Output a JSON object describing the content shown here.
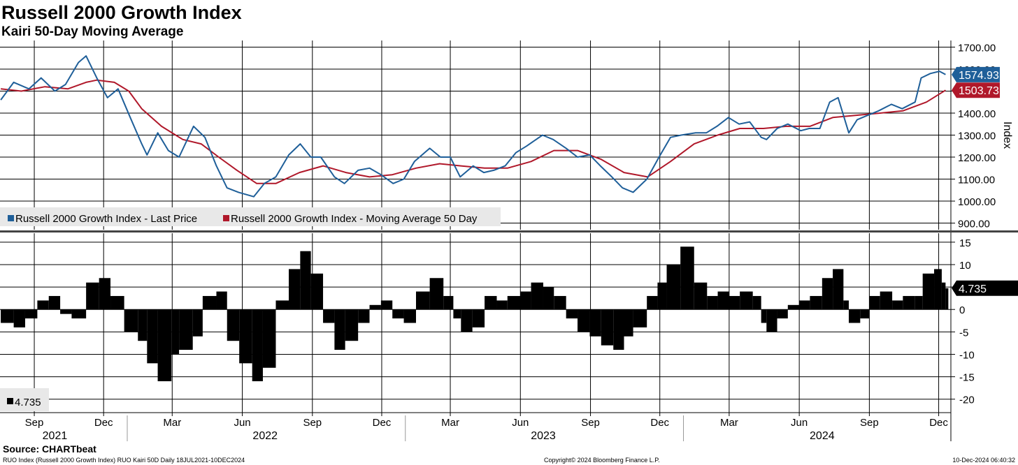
{
  "title": "Russell 2000 Growth Index",
  "subtitle": "Kairi 50-Day Moving Average",
  "source": "Source: CHARTbeat",
  "footer": {
    "left": "RUO Index (Russell 2000 Growth Index) RUO Kairi 50D  Daily 18JUL2021-10DEC2024",
    "center": "Copyright© 2024 Bloomberg Finance L.P.",
    "right": "10-Dec-2024 06:40:32"
  },
  "colors": {
    "price": "#1f5f99",
    "ma": "#b0182a",
    "kairi": "#000000",
    "grid": "#000000",
    "legend_bg": "#e8e8e8"
  },
  "chart_data": [
    {
      "type": "line",
      "ylabel": "Index",
      "ylim": [
        870,
        1730
      ],
      "yticks": [
        "1700.00",
        "1600.00",
        "1500.00",
        "1400.00",
        "1300.00",
        "1200.00",
        "1100.00",
        "1000.00",
        "900.00"
      ],
      "ytick_values": [
        1700,
        1600,
        1500,
        1400,
        1300,
        1200,
        1100,
        1000,
        900
      ],
      "legend": [
        "Russell 2000 Growth Index - Last Price",
        "Russell 2000 Growth Index - Moving Average 50 Day"
      ],
      "last_labels": {
        "price": "1574.93",
        "ma": "1503.73"
      },
      "series": [
        {
          "name": "Russell 2000 Growth Index - Last Price",
          "x": [
            "2021-07-19",
            "2021-08-05",
            "2021-08-25",
            "2021-09-10",
            "2021-09-28",
            "2021-10-12",
            "2021-10-29",
            "2021-11-08",
            "2021-11-22",
            "2021-12-06",
            "2021-12-20",
            "2022-01-05",
            "2022-01-20",
            "2022-01-27",
            "2022-02-10",
            "2022-02-24",
            "2022-03-10",
            "2022-03-29",
            "2022-04-13",
            "2022-04-28",
            "2022-05-12",
            "2022-05-27",
            "2022-06-16",
            "2022-06-30",
            "2022-07-15",
            "2022-08-01",
            "2022-08-16",
            "2022-08-30",
            "2022-09-12",
            "2022-09-30",
            "2022-10-13",
            "2022-10-31",
            "2022-11-15",
            "2022-11-30",
            "2022-12-16",
            "2022-12-30",
            "2023-01-13",
            "2023-02-02",
            "2023-02-16",
            "2023-03-01",
            "2023-03-14",
            "2023-03-31",
            "2023-04-14",
            "2023-04-27",
            "2023-05-12",
            "2023-05-26",
            "2023-06-09",
            "2023-06-30",
            "2023-07-14",
            "2023-07-31",
            "2023-08-15",
            "2023-08-31",
            "2023-09-14",
            "2023-09-29",
            "2023-10-13",
            "2023-10-27",
            "2023-11-14",
            "2023-11-30",
            "2023-12-15",
            "2023-12-29",
            "2024-01-17",
            "2024-01-31",
            "2024-02-14",
            "2024-02-29",
            "2024-03-14",
            "2024-03-28",
            "2024-04-12",
            "2024-04-19",
            "2024-05-03",
            "2024-05-17",
            "2024-06-03",
            "2024-06-14",
            "2024-06-28",
            "2024-07-11",
            "2024-07-22",
            "2024-08-05",
            "2024-08-16",
            "2024-08-30",
            "2024-09-13",
            "2024-09-30",
            "2024-10-14",
            "2024-10-31",
            "2024-11-08",
            "2024-11-20",
            "2024-12-02",
            "2024-12-10"
          ],
          "values": [
            1460,
            1540,
            1510,
            1560,
            1500,
            1530,
            1630,
            1660,
            1560,
            1470,
            1510,
            1380,
            1260,
            1210,
            1310,
            1230,
            1200,
            1340,
            1290,
            1160,
            1060,
            1040,
            1020,
            1080,
            1110,
            1210,
            1260,
            1200,
            1200,
            1110,
            1080,
            1140,
            1150,
            1120,
            1080,
            1100,
            1180,
            1240,
            1200,
            1200,
            1110,
            1160,
            1130,
            1140,
            1160,
            1220,
            1250,
            1300,
            1280,
            1240,
            1200,
            1210,
            1160,
            1110,
            1060,
            1040,
            1100,
            1200,
            1290,
            1300,
            1310,
            1310,
            1340,
            1380,
            1350,
            1360,
            1290,
            1280,
            1330,
            1350,
            1320,
            1330,
            1330,
            1450,
            1470,
            1310,
            1370,
            1390,
            1410,
            1440,
            1420,
            1450,
            1560,
            1580,
            1590,
            1575
          ]
        },
        {
          "name": "Russell 2000 Growth Index - Moving Average 50 Day",
          "x": [
            "2021-07-19",
            "2021-08-15",
            "2021-09-15",
            "2021-10-15",
            "2021-11-08",
            "2021-11-22",
            "2021-12-15",
            "2022-01-03",
            "2022-01-20",
            "2022-02-15",
            "2022-03-15",
            "2022-04-08",
            "2022-05-01",
            "2022-05-25",
            "2022-06-20",
            "2022-07-15",
            "2022-08-15",
            "2022-09-15",
            "2022-10-15",
            "2022-11-15",
            "2022-12-15",
            "2023-01-15",
            "2023-02-15",
            "2023-03-15",
            "2023-04-15",
            "2023-05-15",
            "2023-06-15",
            "2023-07-15",
            "2023-08-15",
            "2023-09-15",
            "2023-10-15",
            "2023-11-15",
            "2023-12-15",
            "2024-01-15",
            "2024-02-15",
            "2024-03-15",
            "2024-04-15",
            "2024-05-15",
            "2024-06-15",
            "2024-07-15",
            "2024-08-15",
            "2024-09-15",
            "2024-10-15",
            "2024-11-15",
            "2024-12-10"
          ],
          "values": [
            1510,
            1500,
            1520,
            1510,
            1540,
            1550,
            1540,
            1500,
            1420,
            1340,
            1280,
            1260,
            1200,
            1140,
            1080,
            1080,
            1130,
            1160,
            1130,
            1110,
            1120,
            1150,
            1170,
            1160,
            1150,
            1150,
            1180,
            1230,
            1230,
            1190,
            1130,
            1110,
            1180,
            1260,
            1300,
            1330,
            1330,
            1340,
            1340,
            1380,
            1390,
            1400,
            1410,
            1450,
            1504
          ]
        }
      ]
    },
    {
      "type": "bar",
      "ylabel": "",
      "ylim": [
        -23,
        17
      ],
      "yticks": [
        "15",
        "10",
        "5",
        "0",
        "-5",
        "-10",
        "-15",
        "-20"
      ],
      "ytick_values": [
        15,
        10,
        5,
        0,
        -5,
        -10,
        -15,
        -20
      ],
      "legend": [
        "4.735"
      ],
      "last_label": "4.735",
      "series": [
        {
          "name": "4.735",
          "x": [
            "2021-07-19",
            "2021-08-05",
            "2021-08-20",
            "2021-09-05",
            "2021-09-20",
            "2021-10-05",
            "2021-10-20",
            "2021-11-08",
            "2021-11-25",
            "2021-12-10",
            "2021-12-28",
            "2022-01-15",
            "2022-01-27",
            "2022-02-10",
            "2022-02-28",
            "2022-03-10",
            "2022-03-28",
            "2022-04-10",
            "2022-04-28",
            "2022-05-12",
            "2022-05-28",
            "2022-06-14",
            "2022-06-28",
            "2022-07-15",
            "2022-08-01",
            "2022-08-16",
            "2022-08-30",
            "2022-09-15",
            "2022-09-30",
            "2022-10-14",
            "2022-10-31",
            "2022-11-15",
            "2022-11-30",
            "2022-12-15",
            "2022-12-30",
            "2023-01-15",
            "2023-02-02",
            "2023-02-20",
            "2023-03-05",
            "2023-03-15",
            "2023-03-30",
            "2023-04-15",
            "2023-05-01",
            "2023-05-15",
            "2023-06-01",
            "2023-06-15",
            "2023-07-01",
            "2023-07-15",
            "2023-07-31",
            "2023-08-15",
            "2023-08-31",
            "2023-09-15",
            "2023-10-01",
            "2023-10-15",
            "2023-10-27",
            "2023-11-14",
            "2023-11-28",
            "2023-12-10",
            "2023-12-28",
            "2024-01-15",
            "2024-02-01",
            "2024-02-15",
            "2024-03-01",
            "2024-03-15",
            "2024-04-01",
            "2024-04-12",
            "2024-04-19",
            "2024-05-03",
            "2024-05-17",
            "2024-06-01",
            "2024-06-15",
            "2024-07-01",
            "2024-07-15",
            "2024-07-29",
            "2024-08-05",
            "2024-08-20",
            "2024-09-01",
            "2024-09-15",
            "2024-10-01",
            "2024-10-15",
            "2024-10-31",
            "2024-11-10",
            "2024-11-25",
            "2024-12-05",
            "2024-12-10"
          ],
          "values": [
            -3,
            -4,
            -2,
            2,
            3,
            -1,
            -2,
            6,
            7,
            3,
            -5,
            -7,
            -12,
            -16,
            -10,
            -9,
            -6,
            3,
            4,
            -7,
            -12,
            -16,
            -13,
            2,
            9,
            13,
            8,
            -3,
            -9,
            -7,
            -3,
            1,
            2,
            -2,
            -3,
            4,
            7,
            3,
            -2,
            -5,
            -4,
            3,
            2,
            3,
            4,
            6,
            5,
            3,
            -2,
            -5,
            -6,
            -8,
            -9,
            -6,
            -4,
            3,
            6,
            10,
            14,
            6,
            3,
            4,
            3,
            4,
            3,
            -3,
            -5,
            -2,
            1,
            2,
            3,
            7,
            9,
            2,
            -3,
            -2,
            3,
            4,
            2,
            3,
            3,
            8,
            9,
            6,
            4.735
          ]
        }
      ]
    }
  ],
  "xaxis": {
    "months": [
      {
        "label": "Sep",
        "date": "2021-09-01"
      },
      {
        "label": "Dec",
        "date": "2021-12-01"
      },
      {
        "label": "Mar",
        "date": "2022-03-01"
      },
      {
        "label": "Jun",
        "date": "2022-06-01"
      },
      {
        "label": "Sep",
        "date": "2022-09-01"
      },
      {
        "label": "Dec",
        "date": "2022-12-01"
      },
      {
        "label": "Mar",
        "date": "2023-03-01"
      },
      {
        "label": "Jun",
        "date": "2023-06-01"
      },
      {
        "label": "Sep",
        "date": "2023-09-01"
      },
      {
        "label": "Dec",
        "date": "2023-12-01"
      },
      {
        "label": "Mar",
        "date": "2024-03-01"
      },
      {
        "label": "Jun",
        "date": "2024-06-01"
      },
      {
        "label": "Sep",
        "date": "2024-09-01"
      },
      {
        "label": "Dec",
        "date": "2024-12-01"
      }
    ],
    "years": [
      {
        "label": "2021",
        "date": "2021-09-28"
      },
      {
        "label": "2022",
        "date": "2022-07-01"
      },
      {
        "label": "2023",
        "date": "2023-07-01"
      },
      {
        "label": "2024",
        "date": "2024-07-01"
      }
    ],
    "year_boundaries": [
      "2022-01-01",
      "2023-01-01",
      "2024-01-01"
    ],
    "range": [
      "2021-07-18",
      "2024-12-17"
    ]
  }
}
